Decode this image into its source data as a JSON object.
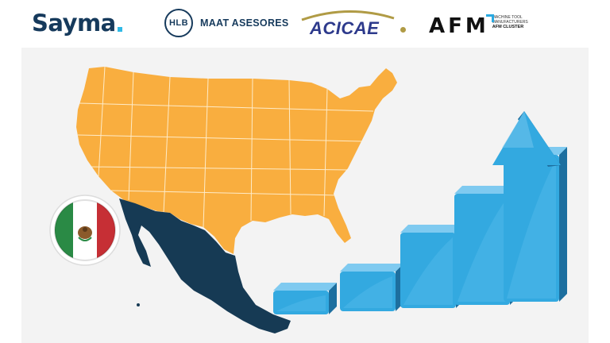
{
  "logos": {
    "sayma": "Sayma",
    "hlb_mark": "HLB",
    "maat": "MAAT ASESORES",
    "acicae": "ACICAE",
    "afm_mark": "AFM",
    "afm_lines": [
      "MACHINE TOOL",
      "MANUFACTURERS"
    ],
    "afm_cluster": "AFM CLUSTER"
  },
  "colors": {
    "usa_fill": "#f9ae3f",
    "mexico_fill": "#163a54",
    "bar_front": "#33a9e0",
    "bar_side": "#1d6f9f",
    "bar_top": "#7fcaf0",
    "flag_green": "#2a8a45",
    "flag_red": "#c62f35"
  },
  "growth_bars": [
    0.12,
    0.2,
    0.38,
    0.56,
    0.74
  ],
  "flag": "mexico-flag"
}
